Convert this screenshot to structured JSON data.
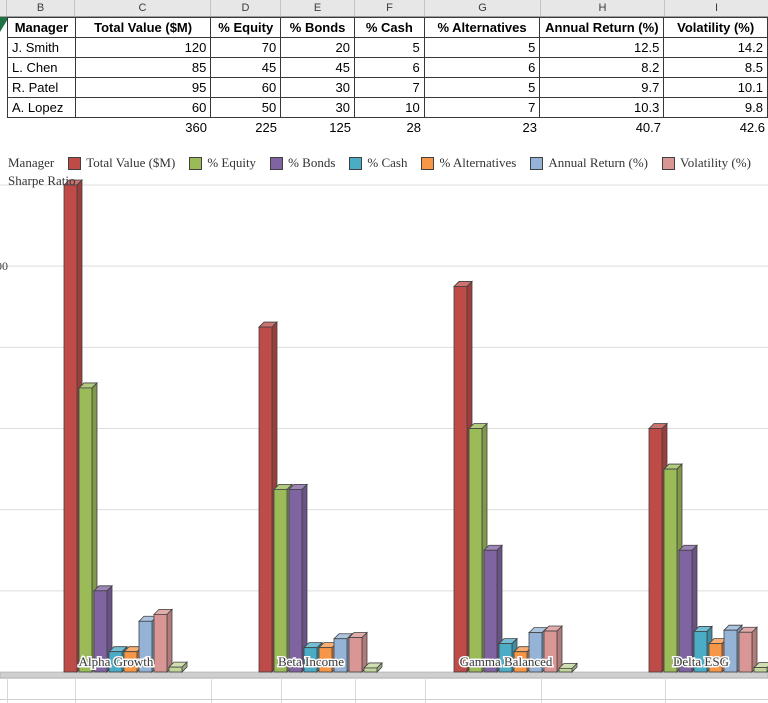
{
  "spreadsheet": {
    "column_letters": [
      "B",
      "C",
      "D",
      "E",
      "F",
      "G",
      "H",
      "I"
    ],
    "table": {
      "headers": [
        "Manager",
        "Total Value ($M)",
        "% Equity",
        "% Bonds",
        "% Cash",
        "% Alternatives",
        "Annual Return (%)",
        "Volatility (%)"
      ],
      "rows": [
        [
          "J. Smith",
          "120",
          "70",
          "20",
          "5",
          "5",
          "12.5",
          "14.2"
        ],
        [
          "L. Chen",
          "85",
          "45",
          "45",
          "6",
          "6",
          "8.2",
          "8.5"
        ],
        [
          "R. Patel",
          "95",
          "60",
          "30",
          "7",
          "5",
          "9.7",
          "10.1"
        ],
        [
          "A. Lopez",
          "60",
          "50",
          "30",
          "10",
          "7",
          "10.3",
          "9.8"
        ]
      ],
      "totals_row": [
        "360",
        "225",
        "125",
        "28",
        "23",
        "40.7",
        "42.6"
      ]
    }
  },
  "chart_data": {
    "type": "bar",
    "subtype": "3d-clustered-column",
    "title": "",
    "legend_leading_label": "Manager",
    "legend_position": "top",
    "categories": [
      "Alpha Growth",
      "Beta Income",
      "Gamma Balanced",
      "Delta ESG"
    ],
    "series": [
      {
        "name": "Total Value ($M)",
        "color": "#BE4B48",
        "values": [
          120,
          85,
          95,
          60
        ]
      },
      {
        "name": "% Equity",
        "color": "#9BBB59",
        "values": [
          70,
          45,
          60,
          50
        ]
      },
      {
        "name": "% Bonds",
        "color": "#8064A2",
        "values": [
          20,
          45,
          30,
          30
        ]
      },
      {
        "name": "% Cash",
        "color": "#4BACC6",
        "values": [
          5,
          6,
          7,
          10
        ]
      },
      {
        "name": "% Alternatives",
        "color": "#F79646",
        "values": [
          5,
          6,
          5,
          7
        ]
      },
      {
        "name": "Annual Return (%)",
        "color": "#95B3D7",
        "values": [
          12.5,
          8.2,
          9.7,
          10.3
        ]
      },
      {
        "name": "Volatility (%)",
        "color": "#D99694",
        "values": [
          14.2,
          8.5,
          10.1,
          9.8
        ]
      },
      {
        "name": "Sharpe Ratio",
        "color": "#C3D69B",
        "values": [
          1.2,
          1.0,
          0.9,
          1.1
        ]
      }
    ],
    "ylim": [
      0,
      120
    ],
    "y_tick_interval": 20,
    "visible_y_tick_label": "100",
    "grid": true
  }
}
